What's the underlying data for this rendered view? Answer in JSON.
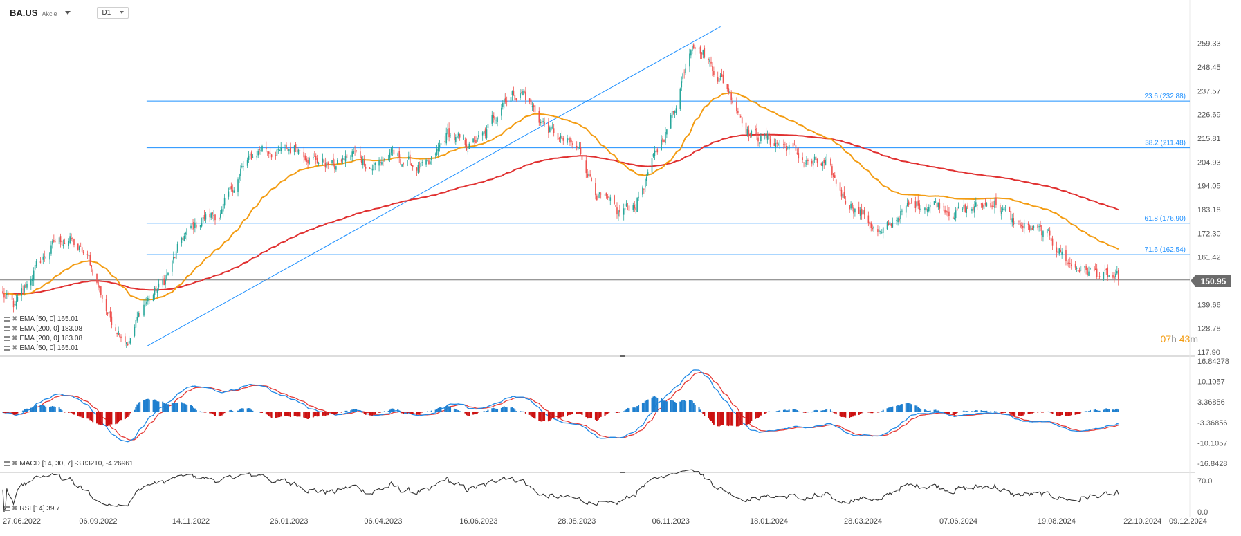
{
  "header": {
    "symbol": "BA.US",
    "type": "Akcje",
    "timeframe": "D1"
  },
  "countdown": {
    "hours": "07",
    "h_unit": "h",
    "minutes": "43",
    "m_unit": "m"
  },
  "current_price": "150.95",
  "colors": {
    "up": "#26a69a",
    "down": "#ef5350",
    "ema50": "#f39c12",
    "ema200": "#e03030",
    "fib": "#1e90ff",
    "macd_line": "#1e88e5",
    "signal_line": "#e53935",
    "hist_pos": "#1e7fcf",
    "hist_neg": "#cc1111",
    "rsi": "#333333",
    "price_line": "#777777"
  },
  "legends": {
    "main": [
      "EMA [50,  0] 165.01",
      "EMA [200,  0] 183.08",
      "EMA [200,  0] 183.08",
      "EMA [50,  0] 165.01"
    ],
    "macd": "MACD [14,  30,  7] -3.83210,  -4.26961",
    "rsi": "RSI [14] 39.7"
  },
  "chart_data": [
    {
      "type": "candlestick",
      "panel": "price",
      "ylim": [
        117.9,
        270.0
      ],
      "y_ticks": [
        "259.33",
        "248.45",
        "237.57",
        "226.69",
        "215.81",
        "204.93",
        "194.05",
        "183.18",
        "172.30",
        "161.42",
        "139.66",
        "128.78",
        "117.90"
      ],
      "x_ticks": [
        "27.06.2022",
        "06.09.2022",
        "14.11.2022",
        "26.01.2023",
        "06.04.2023",
        "16.06.2023",
        "28.08.2023",
        "06.11.2023",
        "18.01.2024",
        "28.03.2024",
        "07.06.2024",
        "19.08.2024",
        "22.10.2024",
        "09.12.2024"
      ],
      "keypoints": {
        "dates": [
          "27.06.2022",
          "06.07.2022",
          "20.07.2022",
          "05.08.2022",
          "15.08.2022",
          "30.08.2022",
          "15.09.2022",
          "29.09.2022",
          "10.10.2022",
          "25.10.2022",
          "09.11.2022",
          "23.11.2022",
          "07.12.2022",
          "21.12.2022",
          "06.01.2023",
          "18.01.2023",
          "01.02.2023",
          "15.02.2023",
          "01.03.2023",
          "15.03.2023",
          "29.03.2023",
          "12.04.2023",
          "26.04.2023",
          "10.05.2023",
          "24.05.2023",
          "07.06.2023",
          "21.06.2023",
          "05.07.2023",
          "19.07.2023",
          "02.08.2023",
          "16.08.2023",
          "30.08.2023",
          "13.09.2023",
          "27.09.2023",
          "11.10.2023",
          "25.10.2023",
          "08.11.2023",
          "22.11.2023",
          "06.12.2023",
          "20.12.2023",
          "04.01.2024",
          "18.01.2024",
          "01.02.2024",
          "15.02.2024",
          "29.02.2024",
          "14.03.2024",
          "28.03.2024",
          "11.04.2024",
          "25.04.2024",
          "09.05.2024",
          "23.05.2024",
          "06.06.2024",
          "20.06.2024",
          "04.07.2024",
          "18.07.2024",
          "01.08.2024",
          "15.08.2024",
          "29.08.2024",
          "12.09.2024",
          "26.09.2024",
          "04.10.2024"
        ],
        "close": [
          144,
          138,
          155,
          168,
          170,
          160,
          133,
          123,
          140,
          150,
          171,
          179,
          182,
          201,
          212,
          209,
          212,
          206,
          203,
          209,
          203,
          208,
          204,
          202,
          218,
          212,
          217,
          235,
          237,
          223,
          215,
          210,
          190,
          181,
          186,
          207,
          228,
          262,
          250,
          237,
          218,
          215,
          212,
          205,
          203,
          189,
          181,
          171,
          182,
          186,
          186,
          182,
          184,
          187,
          177,
          174,
          170,
          158,
          155,
          152,
          150.95
        ]
      },
      "fib_levels": [
        {
          "label": "23.6 (232.88)",
          "value": 232.88
        },
        {
          "label": "38.2 (211.48)",
          "value": 211.48
        },
        {
          "label": "61.8 (176.90)",
          "value": 176.9
        },
        {
          "label": "71.6 (162.54)",
          "value": 162.54
        }
      ],
      "trendline": {
        "from": {
          "date": "12.10.2022",
          "value": 120.5
        },
        "to": {
          "date": "13.12.2023",
          "value": 267.0
        }
      },
      "ema50_last": 165.01,
      "ema200_last": 183.08
    },
    {
      "type": "macd",
      "panel": "macd",
      "params": "14, 30, 7",
      "ylim": [
        -16.8428,
        16.84278
      ],
      "y_ticks": [
        "16.84278",
        "10.1057",
        "3.36856",
        "-3.36856",
        "-10.1057",
        "-16.8428"
      ],
      "macd_last": -3.8321,
      "signal_last": -4.26961
    },
    {
      "type": "line",
      "panel": "rsi",
      "name": "RSI [14]",
      "ylim": [
        0,
        100
      ],
      "y_ticks": [
        "70.0",
        "0.0"
      ],
      "rsi_last": 39.7
    }
  ]
}
